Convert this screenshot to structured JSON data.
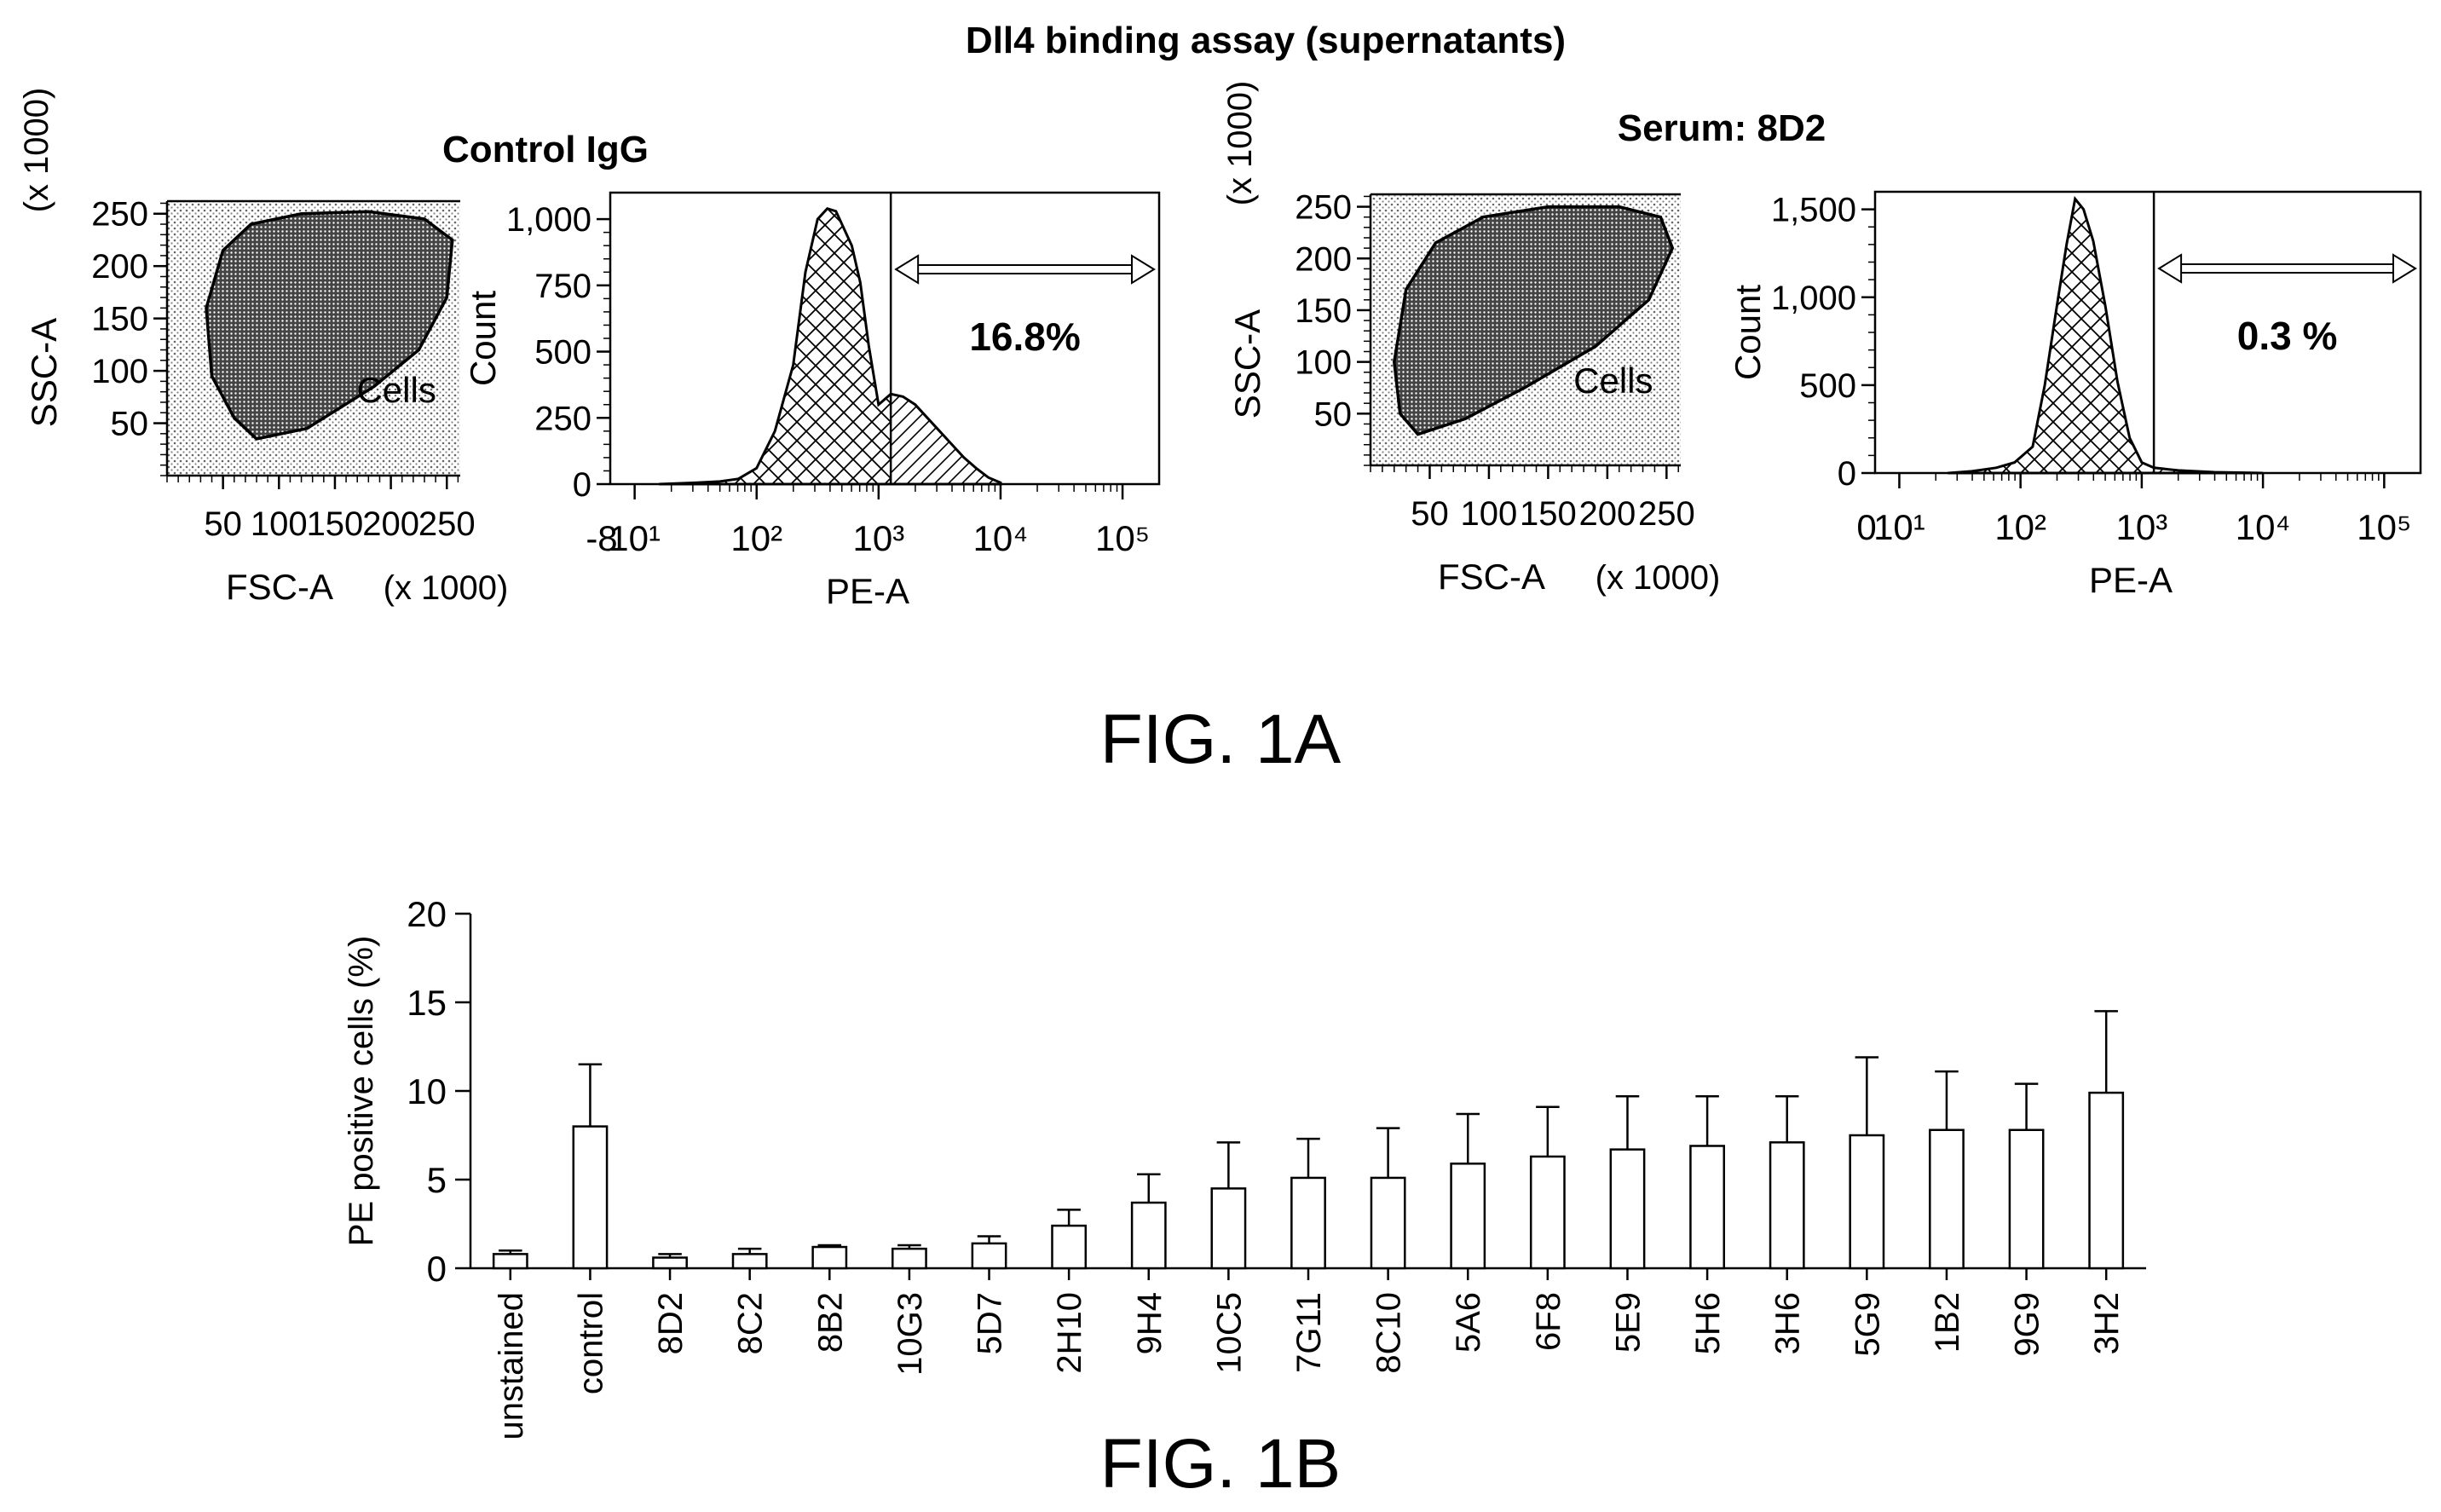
{
  "figure_title": "Dll4 binding assay (supernatants)",
  "fig1a_caption": "FIG. 1A",
  "fig1b_caption": "FIG. 1B",
  "colors": {
    "ink": "#000000",
    "background": "#ffffff"
  },
  "chart_data": [
    {
      "id": "scatter-control",
      "type": "scatter",
      "panel_title": "Control IgG",
      "xlabel": "FSC-A",
      "xunit": "(x 1000)",
      "ylabel": "SSC-A",
      "yunit": "(x 1000)",
      "xticks": [
        "50",
        "100",
        "150",
        "200",
        "250"
      ],
      "yticks": [
        "50",
        "100",
        "150",
        "200",
        "250"
      ],
      "xlim": [
        0,
        262
      ],
      "ylim": [
        0,
        262
      ],
      "gate_label": "Cells",
      "gate": [
        [
          80,
          35
        ],
        [
          60,
          55
        ],
        [
          40,
          95
        ],
        [
          35,
          160
        ],
        [
          50,
          215
        ],
        [
          75,
          240
        ],
        [
          120,
          250
        ],
        [
          180,
          252
        ],
        [
          230,
          245
        ],
        [
          255,
          225
        ],
        [
          250,
          170
        ],
        [
          225,
          120
        ],
        [
          185,
          85
        ],
        [
          125,
          45
        ]
      ]
    },
    {
      "id": "hist-control",
      "type": "area",
      "ylabel": "Count",
      "xlabel": "PE-A",
      "yticks": [
        "0",
        "250",
        "500",
        "750",
        "1,000"
      ],
      "xtick_labels": [
        "-8",
        "10¹",
        "10²",
        "10³",
        "10⁴",
        "10⁵"
      ],
      "ylim": [
        0,
        1100
      ],
      "gate_x": 3.1,
      "gate_percent": "16.8%",
      "x": [
        1.2,
        1.5,
        1.7,
        1.85,
        2.0,
        2.15,
        2.3,
        2.4,
        2.5,
        2.58,
        2.65,
        2.72,
        2.78,
        2.85,
        2.92,
        3.0,
        3.1,
        3.2,
        3.3,
        3.4,
        3.5,
        3.6,
        3.7,
        3.8,
        3.9,
        4.0
      ],
      "y": [
        0,
        5,
        10,
        20,
        60,
        200,
        450,
        800,
        1000,
        1040,
        1030,
        960,
        900,
        760,
        520,
        300,
        340,
        330,
        300,
        250,
        200,
        150,
        100,
        60,
        25,
        5
      ]
    },
    {
      "id": "scatter-8d2",
      "type": "scatter",
      "panel_title": "Serum: 8D2",
      "xlabel": "FSC-A",
      "xunit": "(x 1000)",
      "ylabel": "SSC-A",
      "yunit": "(x 1000)",
      "xticks": [
        "50",
        "100",
        "150",
        "200",
        "250"
      ],
      "yticks": [
        "50",
        "100",
        "150",
        "200",
        "250"
      ],
      "xlim": [
        0,
        262
      ],
      "ylim": [
        0,
        262
      ],
      "gate_label": "Cells",
      "gate": [
        [
          40,
          30
        ],
        [
          25,
          50
        ],
        [
          20,
          100
        ],
        [
          30,
          170
        ],
        [
          55,
          215
        ],
        [
          95,
          240
        ],
        [
          150,
          250
        ],
        [
          210,
          250
        ],
        [
          245,
          240
        ],
        [
          255,
          210
        ],
        [
          235,
          160
        ],
        [
          190,
          115
        ],
        [
          130,
          75
        ],
        [
          80,
          45
        ]
      ]
    },
    {
      "id": "hist-8d2",
      "type": "area",
      "ylabel": "Count",
      "xlabel": "PE-A",
      "yticks": [
        "0",
        "500",
        "1,000",
        "1,500"
      ],
      "xtick_labels": [
        "0",
        "10¹",
        "10²",
        "10³",
        "10⁴",
        "10⁵"
      ],
      "ylim": [
        0,
        1600
      ],
      "gate_x": 3.1,
      "gate_percent": "0.3 %",
      "x": [
        1.4,
        1.6,
        1.8,
        1.95,
        2.1,
        2.2,
        2.3,
        2.38,
        2.45,
        2.52,
        2.6,
        2.7,
        2.8,
        2.9,
        3.0,
        3.1,
        3.3,
        3.6,
        4.0
      ],
      "y": [
        0,
        10,
        30,
        60,
        150,
        500,
        950,
        1300,
        1560,
        1500,
        1320,
        950,
        520,
        200,
        60,
        30,
        15,
        5,
        0
      ]
    },
    {
      "id": "bar-pe-positive",
      "type": "bar",
      "ylabel": "PE positive cells (%)",
      "ylim": [
        0,
        20
      ],
      "yticks": [
        "0",
        "5",
        "10",
        "15",
        "20"
      ],
      "categories": [
        "unstained",
        "control",
        "8D2",
        "8C2",
        "8B2",
        "10G3",
        "5D7",
        "2H10",
        "9H4",
        "10C5",
        "7G11",
        "8C10",
        "5A6",
        "6F8",
        "5E9",
        "5H6",
        "3H6",
        "5G9",
        "1B2",
        "9G9",
        "3H2"
      ],
      "values": [
        0.8,
        8.0,
        0.6,
        0.8,
        1.2,
        1.1,
        1.4,
        2.4,
        3.7,
        4.5,
        5.1,
        5.1,
        5.9,
        6.3,
        6.7,
        6.9,
        7.1,
        7.5,
        7.8,
        7.8,
        9.9
      ],
      "errors": [
        0.2,
        3.5,
        0.2,
        0.3,
        0.1,
        0.2,
        0.4,
        0.9,
        1.6,
        2.6,
        2.2,
        2.8,
        2.8,
        2.8,
        3.0,
        2.8,
        2.6,
        4.4,
        3.3,
        2.6,
        4.6
      ]
    }
  ]
}
